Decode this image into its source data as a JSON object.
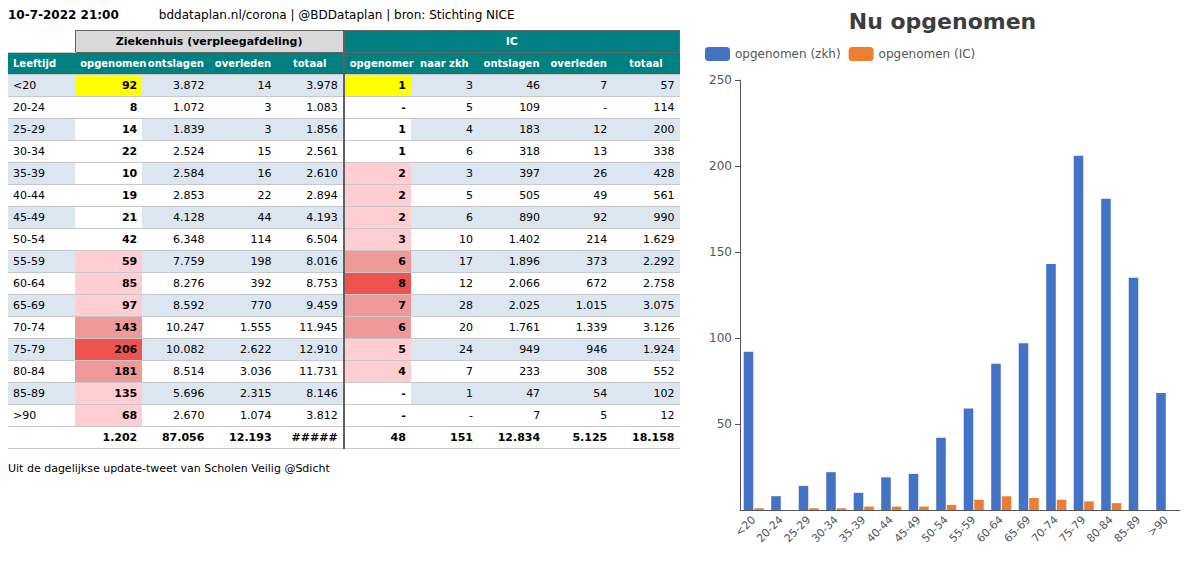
{
  "chart_data": [
    {
      "type": "table",
      "annotations": [
        "10-7-2022 21:00",
        "bddataplan.nl/corona | @BDDataplan | bron: Stichting NICE",
        "Uit de dagelijkse update-tweet van Scholen Veilig @Sdicht"
      ],
      "row_header": "Leeftijd",
      "categories": [
        "<20",
        "20-24",
        "25-29",
        "30-34",
        "35-39",
        "40-44",
        "45-49",
        "50-54",
        "55-59",
        "60-64",
        "65-69",
        "70-74",
        "75-79",
        "80-84",
        "85-89",
        ">90"
      ],
      "groups": [
        {
          "name": "Ziekenhuis (verpleegafdeling)",
          "columns": [
            {
              "name": "opgenomen",
              "values": [
                92,
                8,
                14,
                22,
                10,
                19,
                21,
                42,
                59,
                85,
                97,
                143,
                206,
                181,
                135,
                68
              ],
              "total": "1.202",
              "colors": [
                "#ffff00",
                "#ffffff",
                "#ffffff",
                "#ffffff",
                "#ffffff",
                "#ffffff",
                "#ffffff",
                "#ffffff",
                "#ffcdd2",
                "#ffcdd2",
                "#ffcdd2",
                "#ef9a9a",
                "#ef5350",
                "#ef9a9a",
                "#ffcdd2",
                "#ffcdd2"
              ]
            },
            {
              "name": "ontslagen",
              "values": [
                "3.872",
                "1.072",
                "1.839",
                "2.524",
                "2.584",
                "2.853",
                "4.128",
                "6.348",
                "7.759",
                "8.276",
                "8.592",
                "10.247",
                "10.082",
                "8.514",
                "5.696",
                "2.670"
              ],
              "total": "87.056"
            },
            {
              "name": "overleden",
              "values": [
                "14",
                "3",
                "3",
                "15",
                "16",
                "22",
                "44",
                "114",
                "198",
                "392",
                "770",
                "1.555",
                "2.622",
                "3.036",
                "2.315",
                "1.074"
              ],
              "total": "12.193"
            },
            {
              "name": "totaal",
              "values": [
                "3.978",
                "1.083",
                "1.856",
                "2.561",
                "2.610",
                "2.894",
                "4.193",
                "6.504",
                "8.016",
                "8.753",
                "9.459",
                "11.945",
                "12.910",
                "11.731",
                "8.146",
                "3.812"
              ],
              "total": "#####"
            }
          ]
        },
        {
          "name": "IC",
          "columns": [
            {
              "name": "opgenomer",
              "values": [
                "1",
                "-",
                "1",
                "1",
                "2",
                "2",
                "2",
                "3",
                "6",
                "8",
                "7",
                "6",
                "5",
                "4",
                "-",
                "-"
              ],
              "total": "48",
              "colors": [
                "#ffff00",
                "#ffffff",
                "#ffffff",
                "#ffffff",
                "#ffcdd2",
                "#ffcdd2",
                "#ffcdd2",
                "#ffcdd2",
                "#ef9a9a",
                "#ef5350",
                "#ef9a9a",
                "#ef9a9a",
                "#ffcdd2",
                "#ffcdd2",
                "#ffffff",
                "#ffffff"
              ]
            },
            {
              "name": "naar zkh",
              "values": [
                "3",
                "5",
                "4",
                "6",
                "3",
                "5",
                "6",
                "10",
                "17",
                "12",
                "28",
                "20",
                "24",
                "7",
                "1",
                "-"
              ],
              "total": "151"
            },
            {
              "name": "ontslagen",
              "values": [
                "46",
                "109",
                "183",
                "318",
                "397",
                "505",
                "890",
                "1.402",
                "1.896",
                "2.066",
                "2.025",
                "1.761",
                "949",
                "233",
                "47",
                "7"
              ],
              "total": "12.834"
            },
            {
              "name": "overleden",
              "values": [
                "7",
                "-",
                "12",
                "13",
                "26",
                "49",
                "92",
                "214",
                "373",
                "672",
                "1.015",
                "1.339",
                "946",
                "308",
                "54",
                "5"
              ],
              "total": "5.125"
            },
            {
              "name": "totaal",
              "values": [
                "57",
                "114",
                "200",
                "338",
                "428",
                "561",
                "990",
                "1.629",
                "2.292",
                "2.758",
                "3.075",
                "3.126",
                "1.924",
                "552",
                "102",
                "12"
              ],
              "total": "18.158"
            }
          ]
        }
      ]
    },
    {
      "type": "bar",
      "title": "Nu opgenomen",
      "categories": [
        "<20",
        "20-24",
        "25-29",
        "30-34",
        "35-39",
        "40-44",
        "45-49",
        "50-54",
        "55-59",
        "60-64",
        "65-69",
        "70-74",
        "75-79",
        "80-84",
        "85-89",
        ">90"
      ],
      "series": [
        {
          "name": "opgenomen (zkh)",
          "color": "#4472c4",
          "values": [
            92,
            8,
            14,
            22,
            10,
            19,
            21,
            42,
            59,
            85,
            97,
            143,
            206,
            181,
            135,
            68
          ]
        },
        {
          "name": "opgenomen (IC)",
          "color": "#ed7d31",
          "values": [
            1,
            0,
            1,
            1,
            2,
            2,
            2,
            3,
            6,
            8,
            7,
            6,
            5,
            4,
            0,
            0
          ]
        }
      ],
      "ylim": [
        0,
        250
      ],
      "yticks": [
        50,
        100,
        150,
        200,
        250
      ],
      "grid": false,
      "legend": "upper left"
    }
  ]
}
